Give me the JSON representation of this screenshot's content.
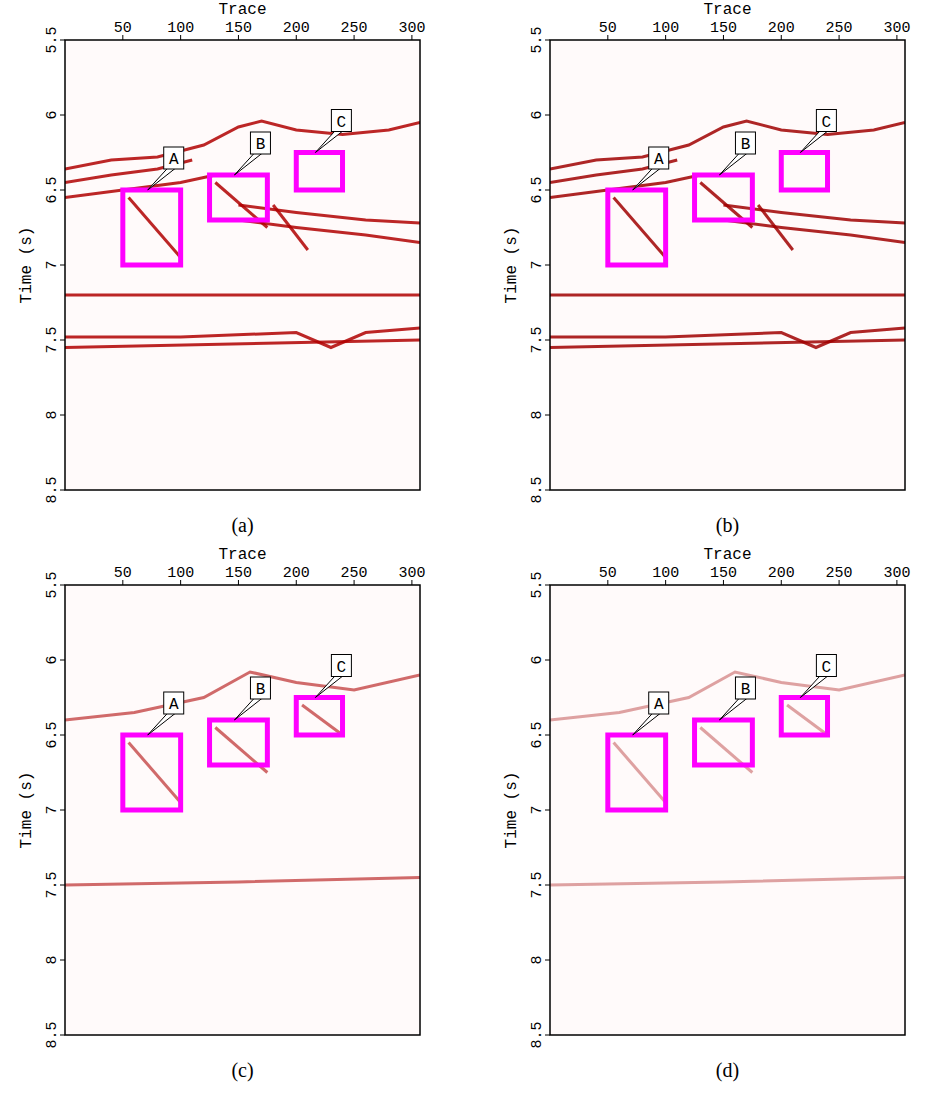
{
  "chart_data": [
    {
      "type": "image",
      "panel": "(a)",
      "xlabel": "Trace",
      "ylabel": "Time (s)",
      "color": "#b00000",
      "xlim": [
        0,
        307
      ],
      "ylim": [
        5.5,
        8.5
      ],
      "xticks": [
        50,
        100,
        150,
        200,
        250,
        300
      ],
      "yticks": [
        5.5,
        6,
        6.5,
        7,
        7.5,
        8,
        8.5
      ],
      "events": [
        {
          "trace": [
            0,
            40,
            80,
            120,
            150,
            170,
            200,
            240,
            280,
            307
          ],
          "time": [
            6.36,
            6.3,
            6.28,
            6.2,
            6.08,
            6.04,
            6.1,
            6.13,
            6.1,
            6.05
          ]
        },
        {
          "trace": [
            0,
            40,
            80,
            110
          ],
          "time": [
            6.45,
            6.4,
            6.36,
            6.3
          ]
        },
        {
          "trace": [
            0,
            50,
            100,
            130
          ],
          "time": [
            6.55,
            6.5,
            6.45,
            6.4
          ]
        },
        {
          "trace": [
            150,
            200,
            260,
            307
          ],
          "time": [
            6.6,
            6.65,
            6.7,
            6.72
          ]
        },
        {
          "trace": [
            150,
            200,
            260,
            307
          ],
          "time": [
            6.7,
            6.75,
            6.8,
            6.85
          ]
        },
        {
          "trace": [
            55,
            100
          ],
          "time": [
            6.55,
            6.95
          ]
        },
        {
          "trace": [
            130,
            175
          ],
          "time": [
            6.45,
            6.75
          ]
        },
        {
          "trace": [
            180,
            210
          ],
          "time": [
            6.6,
            6.9
          ]
        },
        {
          "trace": [
            0,
            307
          ],
          "time": [
            7.2,
            7.2
          ]
        },
        {
          "trace": [
            0,
            100,
            200,
            230,
            260,
            307
          ],
          "time": [
            7.48,
            7.48,
            7.45,
            7.55,
            7.45,
            7.42
          ]
        },
        {
          "trace": [
            0,
            307
          ],
          "time": [
            7.55,
            7.5
          ]
        }
      ],
      "annotations": [
        {
          "label": "A",
          "x": [
            50,
            100
          ],
          "y": [
            6.5,
            7.0
          ]
        },
        {
          "label": "B",
          "x": [
            125,
            175
          ],
          "y": [
            6.4,
            6.7
          ]
        },
        {
          "label": "C",
          "x": [
            200,
            240
          ],
          "y": [
            6.25,
            6.5
          ]
        }
      ]
    },
    {
      "type": "image",
      "panel": "(b)",
      "xlabel": "Trace",
      "ylabel": "Time (s)",
      "color": "#a00000",
      "xlim": [
        0,
        307
      ],
      "ylim": [
        5.5,
        8.5
      ],
      "xticks": [
        50,
        100,
        150,
        200,
        250,
        300
      ],
      "yticks": [
        5.5,
        6,
        6.5,
        7,
        7.5,
        8,
        8.5
      ],
      "events": [
        {
          "trace": [
            0,
            40,
            80,
            120,
            150,
            170,
            200,
            240,
            280,
            307
          ],
          "time": [
            6.36,
            6.3,
            6.28,
            6.2,
            6.08,
            6.04,
            6.1,
            6.13,
            6.1,
            6.05
          ]
        },
        {
          "trace": [
            0,
            40,
            80,
            110
          ],
          "time": [
            6.45,
            6.4,
            6.36,
            6.3
          ]
        },
        {
          "trace": [
            0,
            50,
            100,
            130
          ],
          "time": [
            6.55,
            6.5,
            6.45,
            6.4
          ]
        },
        {
          "trace": [
            150,
            200,
            260,
            307
          ],
          "time": [
            6.6,
            6.65,
            6.7,
            6.72
          ]
        },
        {
          "trace": [
            150,
            200,
            260,
            307
          ],
          "time": [
            6.7,
            6.75,
            6.8,
            6.85
          ]
        },
        {
          "trace": [
            55,
            100
          ],
          "time": [
            6.55,
            6.95
          ]
        },
        {
          "trace": [
            130,
            175
          ],
          "time": [
            6.45,
            6.75
          ]
        },
        {
          "trace": [
            180,
            210
          ],
          "time": [
            6.6,
            6.9
          ]
        },
        {
          "trace": [
            0,
            307
          ],
          "time": [
            7.2,
            7.2
          ]
        },
        {
          "trace": [
            0,
            100,
            200,
            230,
            260,
            307
          ],
          "time": [
            7.48,
            7.48,
            7.45,
            7.55,
            7.45,
            7.42
          ]
        },
        {
          "trace": [
            0,
            307
          ],
          "time": [
            7.55,
            7.5
          ]
        }
      ],
      "annotations": [
        {
          "label": "A",
          "x": [
            50,
            100
          ],
          "y": [
            6.5,
            7.0
          ]
        },
        {
          "label": "B",
          "x": [
            125,
            175
          ],
          "y": [
            6.4,
            6.7
          ]
        },
        {
          "label": "C",
          "x": [
            200,
            240
          ],
          "y": [
            6.25,
            6.5
          ]
        }
      ]
    },
    {
      "type": "image",
      "panel": "(c)",
      "xlabel": "Trace",
      "ylabel": "Time (s)",
      "color": "#c85050",
      "xlim": [
        0,
        307
      ],
      "ylim": [
        5.5,
        8.5
      ],
      "xticks": [
        50,
        100,
        150,
        200,
        250,
        300
      ],
      "yticks": [
        5.5,
        6,
        6.5,
        7,
        7.5,
        8,
        8.5
      ],
      "events": [
        {
          "trace": [
            0,
            60,
            120,
            160,
            200,
            250,
            307
          ],
          "time": [
            6.4,
            6.35,
            6.25,
            6.08,
            6.15,
            6.2,
            6.1
          ]
        },
        {
          "trace": [
            55,
            100
          ],
          "time": [
            6.55,
            6.95
          ]
        },
        {
          "trace": [
            130,
            175
          ],
          "time": [
            6.45,
            6.75
          ]
        },
        {
          "trace": [
            205,
            240
          ],
          "time": [
            6.3,
            6.5
          ]
        },
        {
          "trace": [
            0,
            150,
            307
          ],
          "time": [
            7.5,
            7.48,
            7.45
          ]
        }
      ],
      "annotations": [
        {
          "label": "A",
          "x": [
            50,
            100
          ],
          "y": [
            6.5,
            7.0
          ]
        },
        {
          "label": "B",
          "x": [
            125,
            175
          ],
          "y": [
            6.4,
            6.7
          ]
        },
        {
          "label": "C",
          "x": [
            200,
            240
          ],
          "y": [
            6.25,
            6.5
          ]
        }
      ]
    },
    {
      "type": "image",
      "panel": "(d)",
      "xlabel": "Trace",
      "ylabel": "Time (s)",
      "color": "#d89090",
      "xlim": [
        0,
        307
      ],
      "ylim": [
        5.5,
        8.5
      ],
      "xticks": [
        50,
        100,
        150,
        200,
        250,
        300
      ],
      "yticks": [
        5.5,
        6,
        6.5,
        7,
        7.5,
        8,
        8.5
      ],
      "events": [
        {
          "trace": [
            0,
            60,
            120,
            160,
            200,
            250,
            307
          ],
          "time": [
            6.4,
            6.35,
            6.25,
            6.08,
            6.15,
            6.2,
            6.1
          ]
        },
        {
          "trace": [
            55,
            100
          ],
          "time": [
            6.55,
            6.95
          ]
        },
        {
          "trace": [
            130,
            175
          ],
          "time": [
            6.45,
            6.75
          ]
        },
        {
          "trace": [
            205,
            240
          ],
          "time": [
            6.3,
            6.5
          ]
        },
        {
          "trace": [
            0,
            150,
            307
          ],
          "time": [
            7.5,
            7.48,
            7.45
          ]
        }
      ],
      "annotations": [
        {
          "label": "A",
          "x": [
            50,
            100
          ],
          "y": [
            6.5,
            7.0
          ]
        },
        {
          "label": "B",
          "x": [
            125,
            175
          ],
          "y": [
            6.4,
            6.7
          ]
        },
        {
          "label": "C",
          "x": [
            200,
            240
          ],
          "y": [
            6.25,
            6.5
          ]
        }
      ]
    }
  ]
}
